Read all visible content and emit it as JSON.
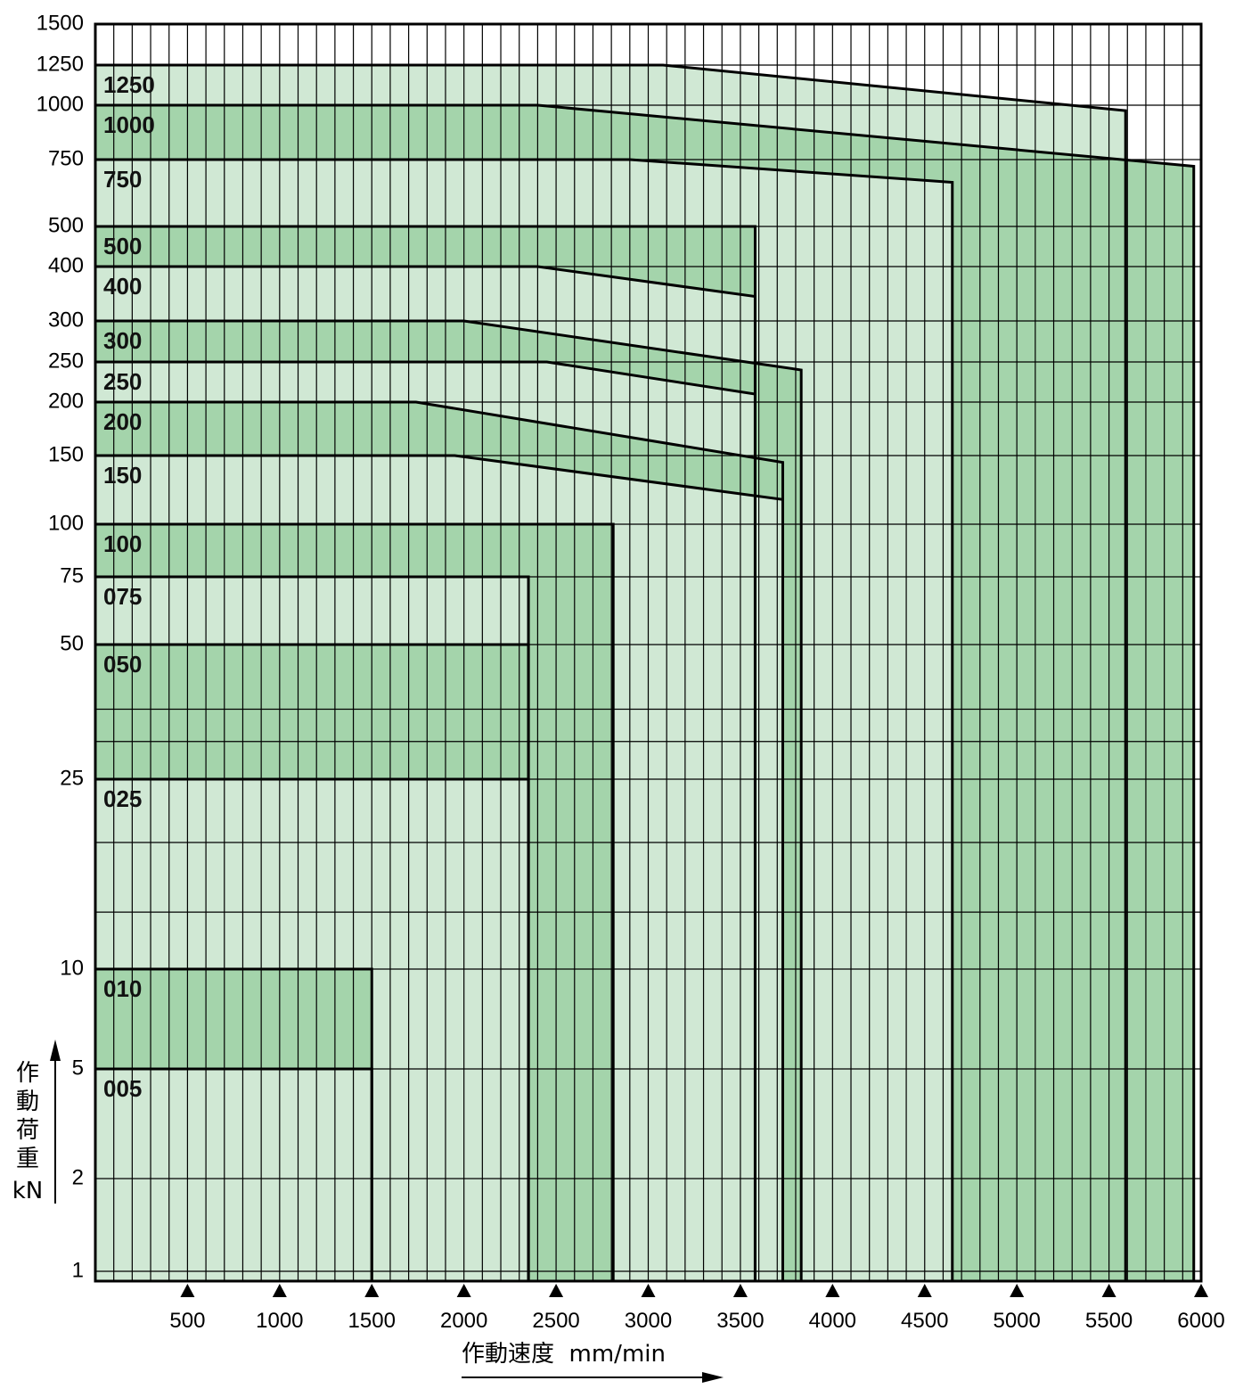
{
  "chart_data": {
    "type": "area",
    "xlabel": "作動速度  mm/min",
    "ylabel_chars": [
      "作",
      "動",
      "荷",
      "重"
    ],
    "ylabel_unit": "kN",
    "xlim": [
      0,
      6000
    ],
    "x_ticks": [
      500,
      1000,
      1500,
      2000,
      2500,
      3000,
      3500,
      4000,
      4500,
      5000,
      5500,
      6000
    ],
    "y_ticks": [
      1,
      2,
      5,
      10,
      25,
      50,
      75,
      100,
      150,
      200,
      250,
      300,
      400,
      500,
      750,
      1000,
      1250,
      1500
    ],
    "grid": true,
    "colors": {
      "light_band": "#d0e8d4",
      "dark_band": "#a4d4ab",
      "line": "#000000"
    },
    "series": [
      {
        "label": "1250",
        "load_range": [
          1000,
          1250
        ],
        "shade": "light",
        "points": [
          [
            0,
            1250
          ],
          [
            3080,
            1250
          ],
          [
            5590,
            975
          ],
          [
            5590,
            1
          ]
        ]
      },
      {
        "label": "1000",
        "load_range": [
          750,
          1000
        ],
        "shade": "dark",
        "points": [
          [
            0,
            1000
          ],
          [
            2400,
            1000
          ],
          [
            5960,
            725
          ],
          [
            5960,
            1
          ]
        ]
      },
      {
        "label": "750",
        "load_range": [
          500,
          750
        ],
        "shade": "light",
        "points": [
          [
            0,
            750
          ],
          [
            2900,
            750
          ],
          [
            4650,
            665
          ],
          [
            4650,
            1
          ]
        ]
      },
      {
        "label": "500",
        "load_range": [
          400,
          500
        ],
        "shade": "dark",
        "points": [
          [
            0,
            500
          ],
          [
            3580,
            500
          ],
          [
            3580,
            1
          ]
        ]
      },
      {
        "label": "400",
        "load_range": [
          300,
          400
        ],
        "shade": "light",
        "points": [
          [
            0,
            400
          ],
          [
            2400,
            400
          ],
          [
            3580,
            345
          ],
          [
            3580,
            1
          ]
        ]
      },
      {
        "label": "300",
        "load_range": [
          250,
          300
        ],
        "shade": "dark",
        "points": [
          [
            0,
            300
          ],
          [
            2000,
            300
          ],
          [
            3830,
            240
          ],
          [
            3830,
            1
          ]
        ]
      },
      {
        "label": "250",
        "load_range": [
          200,
          250
        ],
        "shade": "light",
        "points": [
          [
            0,
            250
          ],
          [
            2450,
            250
          ],
          [
            3580,
            210
          ],
          [
            3580,
            1
          ]
        ]
      },
      {
        "label": "200",
        "load_range": [
          150,
          200
        ],
        "shade": "dark",
        "points": [
          [
            0,
            200
          ],
          [
            1740,
            200
          ],
          [
            3730,
            145
          ],
          [
            3730,
            1
          ]
        ]
      },
      {
        "label": "150",
        "load_range": [
          100,
          150
        ],
        "shade": "light",
        "points": [
          [
            0,
            150
          ],
          [
            1950,
            150
          ],
          [
            3730,
            118
          ],
          [
            3730,
            1
          ]
        ]
      },
      {
        "label": "100",
        "load_range": [
          75,
          100
        ],
        "shade": "dark",
        "points": [
          [
            0,
            100
          ],
          [
            2810,
            100
          ],
          [
            2810,
            1
          ]
        ]
      },
      {
        "label": "075",
        "load_range": [
          50,
          75
        ],
        "shade": "light",
        "points": [
          [
            0,
            75
          ],
          [
            2350,
            75
          ],
          [
            2350,
            1
          ]
        ]
      },
      {
        "label": "050",
        "load_range": [
          25,
          50
        ],
        "shade": "dark",
        "points": [
          [
            0,
            50
          ],
          [
            2350,
            50
          ],
          [
            2350,
            1
          ]
        ]
      },
      {
        "label": "025",
        "load_range": [
          10,
          25
        ],
        "shade": "light",
        "points": [
          [
            0,
            25
          ],
          [
            2350,
            25
          ],
          [
            2350,
            1
          ]
        ]
      },
      {
        "label": "010",
        "load_range": [
          5,
          10
        ],
        "shade": "dark",
        "points": [
          [
            0,
            10
          ],
          [
            1500,
            10
          ],
          [
            1500,
            1
          ]
        ]
      },
      {
        "label": "005",
        "load_range": [
          1,
          5
        ],
        "shade": "light",
        "points": [
          [
            0,
            5
          ],
          [
            1500,
            5
          ],
          [
            1500,
            1
          ]
        ]
      }
    ]
  }
}
